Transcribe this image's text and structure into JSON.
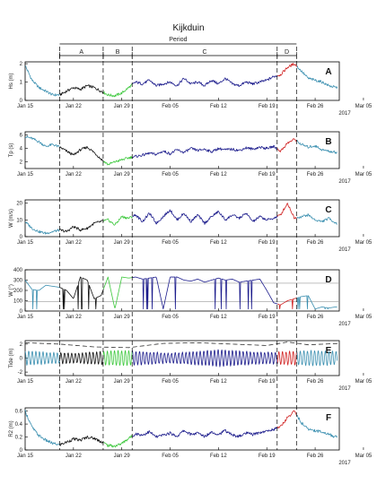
{
  "figure": {
    "title": "Kijkduin",
    "period_label": "Period",
    "periods": [
      {
        "label": "A",
        "start_day": 20.0,
        "end_day": 26.3
      },
      {
        "label": "B",
        "start_day": 26.3,
        "end_day": 30.5
      },
      {
        "label": "C",
        "start_day": 30.5,
        "end_day": 51.5
      },
      {
        "label": "D",
        "start_day": 51.5,
        "end_day": 54.3
      }
    ],
    "x_ticks": [
      "Jan 15",
      "Jan 22",
      "Jan 29",
      "Feb 05",
      "Feb 12",
      "Feb 19",
      "Feb 26",
      "Mar 05"
    ],
    "x_tick_days": [
      15,
      22,
      29,
      36,
      43,
      50,
      57,
      64
    ],
    "x_corner_label": "2017",
    "colors": {
      "pre": "#3a8fb0",
      "A": "#111111",
      "B": "#3cc83c",
      "C": "#1c1c8c",
      "D": "#d02020",
      "post": "#3a8fb0",
      "ref": "#999999",
      "dashed_env": "#333333"
    }
  },
  "chart_data": [
    {
      "type": "line",
      "panel": "A",
      "ylabel": "Hs (m)",
      "yticks": [
        "0",
        "1",
        "2"
      ],
      "ylim": [
        0,
        2.1
      ],
      "x_range_days": [
        15,
        60.5
      ],
      "keypoints": [
        [
          15,
          1.9
        ],
        [
          16,
          1.1
        ],
        [
          17,
          0.7
        ],
        [
          18,
          0.5
        ],
        [
          19,
          0.3
        ],
        [
          20,
          0.3
        ],
        [
          21,
          0.5
        ],
        [
          22,
          0.7
        ],
        [
          23,
          0.6
        ],
        [
          24,
          0.8
        ],
        [
          25,
          0.7
        ],
        [
          26,
          0.5
        ],
        [
          27,
          0.3
        ],
        [
          28,
          0.25
        ],
        [
          29,
          0.4
        ],
        [
          30,
          0.7
        ],
        [
          31,
          1.0
        ],
        [
          32,
          0.9
        ],
        [
          33,
          1.1
        ],
        [
          34,
          0.8
        ],
        [
          35,
          0.9
        ],
        [
          36,
          1.0
        ],
        [
          37,
          0.8
        ],
        [
          38,
          1.2
        ],
        [
          39,
          0.9
        ],
        [
          40,
          1.0
        ],
        [
          41,
          0.8
        ],
        [
          42,
          1.1
        ],
        [
          43,
          0.9
        ],
        [
          44,
          1.2
        ],
        [
          45,
          0.9
        ],
        [
          46,
          0.8
        ],
        [
          47,
          1.0
        ],
        [
          48,
          0.9
        ],
        [
          49,
          1.0
        ],
        [
          50,
          1.1
        ],
        [
          51,
          1.3
        ],
        [
          52,
          1.4
        ],
        [
          53,
          1.8
        ],
        [
          54,
          2.0
        ],
        [
          55,
          1.6
        ],
        [
          56,
          1.2
        ],
        [
          57,
          1.1
        ],
        [
          58,
          1.0
        ],
        [
          59,
          0.8
        ],
        [
          60,
          0.7
        ]
      ]
    },
    {
      "type": "line",
      "panel": "B",
      "ylabel": "Tp (s)",
      "yticks": [
        "2",
        "4",
        "6"
      ],
      "ylim": [
        1,
        6.5
      ],
      "x_range_days": [
        15,
        60.5
      ],
      "keypoints": [
        [
          15,
          5.8
        ],
        [
          16,
          5.5
        ],
        [
          17,
          5.0
        ],
        [
          18,
          4.3
        ],
        [
          19,
          4.6
        ],
        [
          20,
          4.2
        ],
        [
          21,
          3.6
        ],
        [
          22,
          3.0
        ],
        [
          23,
          3.8
        ],
        [
          24,
          4.2
        ],
        [
          25,
          3.4
        ],
        [
          26,
          2.4
        ],
        [
          27,
          1.6
        ],
        [
          28,
          2.0
        ],
        [
          29,
          2.3
        ],
        [
          30,
          2.6
        ],
        [
          31,
          2.8
        ],
        [
          32,
          3.0
        ],
        [
          33,
          3.3
        ],
        [
          34,
          3.1
        ],
        [
          35,
          3.6
        ],
        [
          36,
          3.2
        ],
        [
          37,
          3.8
        ],
        [
          38,
          3.4
        ],
        [
          39,
          4.0
        ],
        [
          40,
          3.7
        ],
        [
          41,
          3.9
        ],
        [
          42,
          3.5
        ],
        [
          43,
          4.0
        ],
        [
          44,
          3.8
        ],
        [
          45,
          3.9
        ],
        [
          46,
          3.7
        ],
        [
          47,
          4.1
        ],
        [
          48,
          3.9
        ],
        [
          49,
          4.2
        ],
        [
          50,
          4.0
        ],
        [
          51,
          4.3
        ],
        [
          52,
          3.6
        ],
        [
          53,
          4.8
        ],
        [
          54,
          5.4
        ],
        [
          55,
          4.6
        ],
        [
          56,
          4.2
        ],
        [
          57,
          4.4
        ],
        [
          58,
          3.8
        ],
        [
          59,
          3.6
        ],
        [
          60,
          3.4
        ]
      ]
    },
    {
      "type": "line",
      "panel": "C",
      "ylabel": "W (m/s)",
      "yticks": [
        "0",
        "10",
        "20"
      ],
      "ylim": [
        0,
        22
      ],
      "x_range_days": [
        15,
        60.5
      ],
      "keypoints": [
        [
          15,
          9
        ],
        [
          16,
          5
        ],
        [
          17,
          3
        ],
        [
          18,
          2
        ],
        [
          19,
          3
        ],
        [
          20,
          4
        ],
        [
          21,
          3
        ],
        [
          22,
          6
        ],
        [
          23,
          4
        ],
        [
          24,
          5
        ],
        [
          25,
          8
        ],
        [
          26,
          9
        ],
        [
          27,
          10
        ],
        [
          28,
          7
        ],
        [
          29,
          12
        ],
        [
          30,
          11
        ],
        [
          31,
          13
        ],
        [
          32,
          9
        ],
        [
          33,
          14
        ],
        [
          34,
          8
        ],
        [
          35,
          12
        ],
        [
          36,
          16
        ],
        [
          37,
          10
        ],
        [
          38,
          14
        ],
        [
          39,
          9
        ],
        [
          40,
          13
        ],
        [
          41,
          8
        ],
        [
          42,
          12
        ],
        [
          43,
          15
        ],
        [
          44,
          10
        ],
        [
          45,
          13
        ],
        [
          46,
          11
        ],
        [
          47,
          14
        ],
        [
          48,
          9
        ],
        [
          49,
          12
        ],
        [
          50,
          10
        ],
        [
          51,
          11
        ],
        [
          52,
          13
        ],
        [
          53,
          20
        ],
        [
          54,
          11
        ],
        [
          55,
          12
        ],
        [
          56,
          13
        ],
        [
          57,
          10
        ],
        [
          58,
          9
        ],
        [
          59,
          11
        ],
        [
          60,
          8
        ]
      ]
    },
    {
      "type": "line",
      "panel": "D",
      "ylabel": "W (°)",
      "yticks": [
        "0",
        "100",
        "200",
        "300",
        "400"
      ],
      "ylim": [
        0,
        400
      ],
      "x_range_days": [
        15,
        60.5
      ],
      "reference_lines": [
        270,
        90
      ],
      "keypoints": [
        [
          15,
          300
        ],
        [
          16,
          210
        ],
        [
          17,
          200
        ],
        [
          18,
          250
        ],
        [
          19,
          240
        ],
        [
          20,
          230
        ],
        [
          21,
          200
        ],
        [
          22,
          120
        ],
        [
          23,
          330
        ],
        [
          24,
          300
        ],
        [
          25,
          120
        ],
        [
          26,
          150
        ],
        [
          27,
          330
        ],
        [
          28,
          20
        ],
        [
          29,
          330
        ],
        [
          30,
          320
        ],
        [
          31,
          330
        ],
        [
          32,
          310
        ],
        [
          33,
          320
        ],
        [
          34,
          330
        ],
        [
          35,
          20
        ],
        [
          36,
          330
        ],
        [
          37,
          330
        ],
        [
          38,
          300
        ],
        [
          39,
          290
        ],
        [
          40,
          310
        ],
        [
          41,
          280
        ],
        [
          42,
          300
        ],
        [
          43,
          320
        ],
        [
          44,
          300
        ],
        [
          45,
          310
        ],
        [
          46,
          280
        ],
        [
          47,
          290
        ],
        [
          48,
          300
        ],
        [
          49,
          310
        ],
        [
          50,
          200
        ],
        [
          51,
          80
        ],
        [
          52,
          60
        ],
        [
          53,
          100
        ],
        [
          54,
          120
        ],
        [
          55,
          140
        ],
        [
          56,
          150
        ],
        [
          57,
          20
        ],
        [
          58,
          40
        ],
        [
          59,
          30
        ],
        [
          60,
          40
        ]
      ]
    },
    {
      "type": "line",
      "panel": "E",
      "ylabel": "Tide (m)",
      "yticks": [
        "-2",
        "0",
        "2"
      ],
      "ylim": [
        -2.5,
        2.5
      ],
      "x_range_days": [
        15,
        60.5
      ],
      "signal": "semi-diurnal tide (12.42 h) with spring-neap modulation, dashed surge envelope on top",
      "amplitude_keypoints": [
        [
          15,
          1.0
        ],
        [
          22,
          0.7
        ],
        [
          29,
          1.1
        ],
        [
          36,
          0.7
        ],
        [
          43,
          1.2
        ],
        [
          50,
          0.8
        ],
        [
          57,
          1.1
        ],
        [
          60.5,
          0.9
        ]
      ],
      "envelope_keypoints": [
        [
          15,
          2.2
        ],
        [
          20,
          2.0
        ],
        [
          25,
          1.6
        ],
        [
          30,
          1.5
        ],
        [
          35,
          2.1
        ],
        [
          40,
          2.2
        ],
        [
          45,
          2.0
        ],
        [
          50,
          1.8
        ],
        [
          53,
          2.3
        ],
        [
          56,
          1.9
        ],
        [
          60.5,
          2.1
        ]
      ]
    },
    {
      "type": "line",
      "panel": "F",
      "ylabel": "R2 (m)",
      "yticks": [
        "0",
        "0.2",
        "0.4",
        "0.6"
      ],
      "ylim": [
        0,
        0.65
      ],
      "x_range_days": [
        15,
        60.5
      ],
      "keypoints": [
        [
          15,
          0.6
        ],
        [
          16,
          0.35
        ],
        [
          17,
          0.22
        ],
        [
          18,
          0.15
        ],
        [
          19,
          0.1
        ],
        [
          20,
          0.08
        ],
        [
          21,
          0.12
        ],
        [
          22,
          0.17
        ],
        [
          23,
          0.15
        ],
        [
          24,
          0.2
        ],
        [
          25,
          0.18
        ],
        [
          26,
          0.13
        ],
        [
          27,
          0.07
        ],
        [
          28,
          0.06
        ],
        [
          29,
          0.1
        ],
        [
          30,
          0.18
        ],
        [
          31,
          0.25
        ],
        [
          32,
          0.23
        ],
        [
          33,
          0.28
        ],
        [
          34,
          0.2
        ],
        [
          35,
          0.23
        ],
        [
          36,
          0.26
        ],
        [
          37,
          0.21
        ],
        [
          38,
          0.3
        ],
        [
          39,
          0.24
        ],
        [
          40,
          0.26
        ],
        [
          41,
          0.21
        ],
        [
          42,
          0.28
        ],
        [
          43,
          0.24
        ],
        [
          44,
          0.3
        ],
        [
          45,
          0.23
        ],
        [
          46,
          0.21
        ],
        [
          47,
          0.26
        ],
        [
          48,
          0.24
        ],
        [
          49,
          0.27
        ],
        [
          50,
          0.29
        ],
        [
          51,
          0.32
        ],
        [
          52,
          0.36
        ],
        [
          53,
          0.5
        ],
        [
          54,
          0.6
        ],
        [
          55,
          0.42
        ],
        [
          56,
          0.32
        ],
        [
          57,
          0.3
        ],
        [
          58,
          0.28
        ],
        [
          59,
          0.24
        ],
        [
          60,
          0.2
        ]
      ]
    }
  ]
}
